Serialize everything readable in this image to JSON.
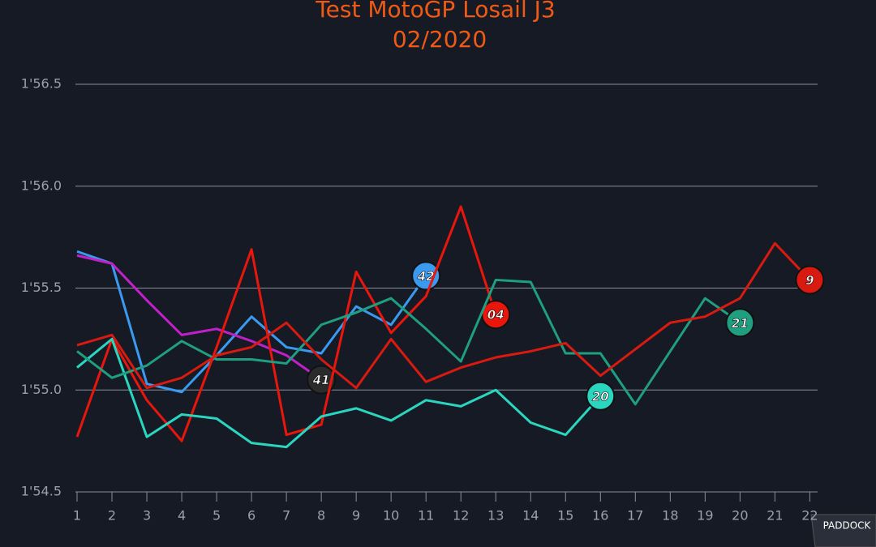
{
  "chart_data": {
    "type": "line",
    "title": "Test MotoGP Losail J3",
    "subtitle": "02/2020",
    "x": [
      1,
      2,
      3,
      4,
      5,
      6,
      7,
      8,
      9,
      10,
      11,
      12,
      13,
      14,
      15,
      16,
      17,
      18,
      19,
      20,
      21,
      22
    ],
    "xlim": [
      1,
      22.2
    ],
    "xticks": [
      1,
      2,
      3,
      4,
      5,
      6,
      7,
      8,
      9,
      10,
      11,
      12,
      13,
      14,
      15,
      16,
      17,
      18,
      19,
      20,
      21,
      22
    ],
    "ylim": [
      114.5,
      116.5
    ],
    "yticks": [
      {
        "value": 114.5,
        "label": "1'54.5"
      },
      {
        "value": 115.0,
        "label": "1'55.0"
      },
      {
        "value": 115.5,
        "label": "1'55.5"
      },
      {
        "value": 116.0,
        "label": "1'56.0"
      },
      {
        "value": 116.5,
        "label": "1'56.5"
      }
    ],
    "grid": true,
    "series": [
      {
        "name": "42",
        "color": "#3a9af0",
        "values": [
          115.68,
          115.62,
          115.03,
          114.99,
          115.17,
          115.36,
          115.21,
          115.18,
          115.41,
          115.32,
          115.56,
          null,
          null,
          null,
          null,
          null,
          null,
          null,
          null,
          null,
          null,
          null
        ]
      },
      {
        "name": "41",
        "color": "#c020c8",
        "values": [
          115.66,
          115.62,
          115.44,
          115.27,
          115.3,
          115.24,
          115.17,
          115.05,
          null,
          null,
          null,
          null,
          null,
          null,
          null,
          null,
          null,
          null,
          null,
          null,
          null,
          null
        ]
      },
      {
        "name": "04",
        "color": "#e8160c",
        "values": [
          114.77,
          115.25,
          114.95,
          114.75,
          115.21,
          115.69,
          114.78,
          114.83,
          115.58,
          115.28,
          115.46,
          115.9,
          115.37,
          null,
          null,
          null,
          null,
          null,
          null,
          null,
          null,
          null
        ]
      },
      {
        "name": "20",
        "color": "#2ad6c0",
        "values": [
          115.11,
          115.25,
          114.77,
          114.88,
          114.86,
          114.74,
          114.72,
          114.87,
          114.91,
          114.85,
          114.95,
          114.92,
          115.0,
          114.84,
          114.78,
          114.97,
          null,
          null,
          null,
          null,
          null,
          null
        ]
      },
      {
        "name": "21",
        "color": "#1f9e80",
        "values": [
          115.19,
          115.06,
          115.12,
          115.24,
          115.15,
          115.15,
          115.13,
          115.32,
          115.38,
          115.45,
          115.3,
          115.14,
          115.54,
          115.53,
          115.18,
          115.18,
          114.93,
          115.19,
          115.45,
          115.33,
          null,
          null
        ]
      },
      {
        "name": "9",
        "color": "#d81a10",
        "values": [
          115.22,
          115.27,
          115.01,
          115.06,
          115.17,
          115.21,
          115.33,
          115.15,
          115.01,
          115.25,
          115.04,
          115.11,
          115.16,
          115.19,
          115.23,
          115.07,
          115.2,
          115.33,
          115.36,
          115.45,
          115.72,
          115.54
        ]
      }
    ]
  },
  "watermark": "PADDOCK"
}
